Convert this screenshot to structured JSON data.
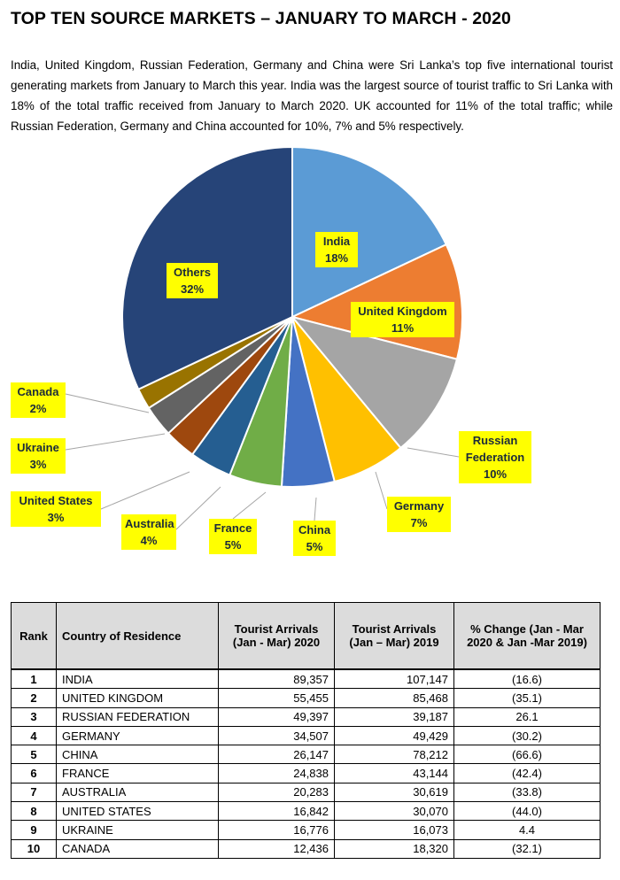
{
  "title": "TOP TEN SOURCE MARKETS – JANUARY TO  MARCH - 2020",
  "intro": "India, United Kingdom, Russian Federation, Germany and China were Sri Lanka’s top five international tourist generating markets from January to March this year. India was the largest source of tourist traffic to Sri Lanka with 18% of the total traffic received from January to March 2020. UK accounted for 11% of the total traffic; while Russian Federation, Germany and China accounted for 10%, 7% and 5% respectively.",
  "chart_data": {
    "type": "pie",
    "title": "",
    "slices": [
      {
        "label": "India",
        "pct": "18%",
        "value": 18,
        "color": "#5b9bd5"
      },
      {
        "label": "United Kingdom",
        "pct": "11%",
        "value": 11,
        "color": "#ed7d31"
      },
      {
        "label": "Russian Federation",
        "pct": "10%",
        "value": 10,
        "color": "#a5a5a5"
      },
      {
        "label": "Germany",
        "pct": "7%",
        "value": 7,
        "color": "#ffc000"
      },
      {
        "label": "China",
        "pct": "5%",
        "value": 5,
        "color": "#4472c4"
      },
      {
        "label": "France",
        "pct": "5%",
        "value": 5,
        "color": "#70ad47"
      },
      {
        "label": "Australia",
        "pct": "4%",
        "value": 4,
        "color": "#255e91"
      },
      {
        "label": "United States",
        "pct": "3%",
        "value": 3,
        "color": "#9e480e"
      },
      {
        "label": "Ukraine",
        "pct": "3%",
        "value": 3,
        "color": "#636363"
      },
      {
        "label": "Canada",
        "pct": "2%",
        "value": 2,
        "color": "#997300"
      },
      {
        "label": "Others",
        "pct": "32%",
        "value": 32,
        "color": "#264478"
      }
    ]
  },
  "table": {
    "headers": {
      "rank": "Rank",
      "country": "Country of Residence",
      "arr2020": "Tourist Arrivals (Jan - Mar) 2020",
      "arr2019": "Tourist Arrivals (Jan – Mar) 2019",
      "change": "% Change (Jan - Mar 2020 & Jan -Mar 2019)"
    },
    "rows": [
      {
        "rank": "1",
        "country": "INDIA",
        "arr2020": "89,357",
        "arr2019": "107,147",
        "change": "(16.6)"
      },
      {
        "rank": "2",
        "country": "UNITED KINGDOM",
        "arr2020": "55,455",
        "arr2019": "85,468",
        "change": "(35.1)"
      },
      {
        "rank": "3",
        "country": "RUSSIAN FEDERATION",
        "arr2020": "49,397",
        "arr2019": "39,187",
        "change": "26.1"
      },
      {
        "rank": "4",
        "country": "GERMANY",
        "arr2020": "34,507",
        "arr2019": "49,429",
        "change": "(30.2)"
      },
      {
        "rank": "5",
        "country": "CHINA",
        "arr2020": "26,147",
        "arr2019": "78,212",
        "change": "(66.6)"
      },
      {
        "rank": "6",
        "country": "FRANCE",
        "arr2020": "24,838",
        "arr2019": "43,144",
        "change": "(42.4)"
      },
      {
        "rank": "7",
        "country": "AUSTRALIA",
        "arr2020": "20,283",
        "arr2019": "30,619",
        "change": "(33.8)"
      },
      {
        "rank": "8",
        "country": "UNITED STATES",
        "arr2020": "16,842",
        "arr2019": "30,070",
        "change": "(44.0)"
      },
      {
        "rank": "9",
        "country": "UKRAINE",
        "arr2020": "16,776",
        "arr2019": "16,073",
        "change": "4.4"
      },
      {
        "rank": "10",
        "country": "CANADA",
        "arr2020": "12,436",
        "arr2019": "18,320",
        "change": "(32.1)"
      }
    ]
  }
}
